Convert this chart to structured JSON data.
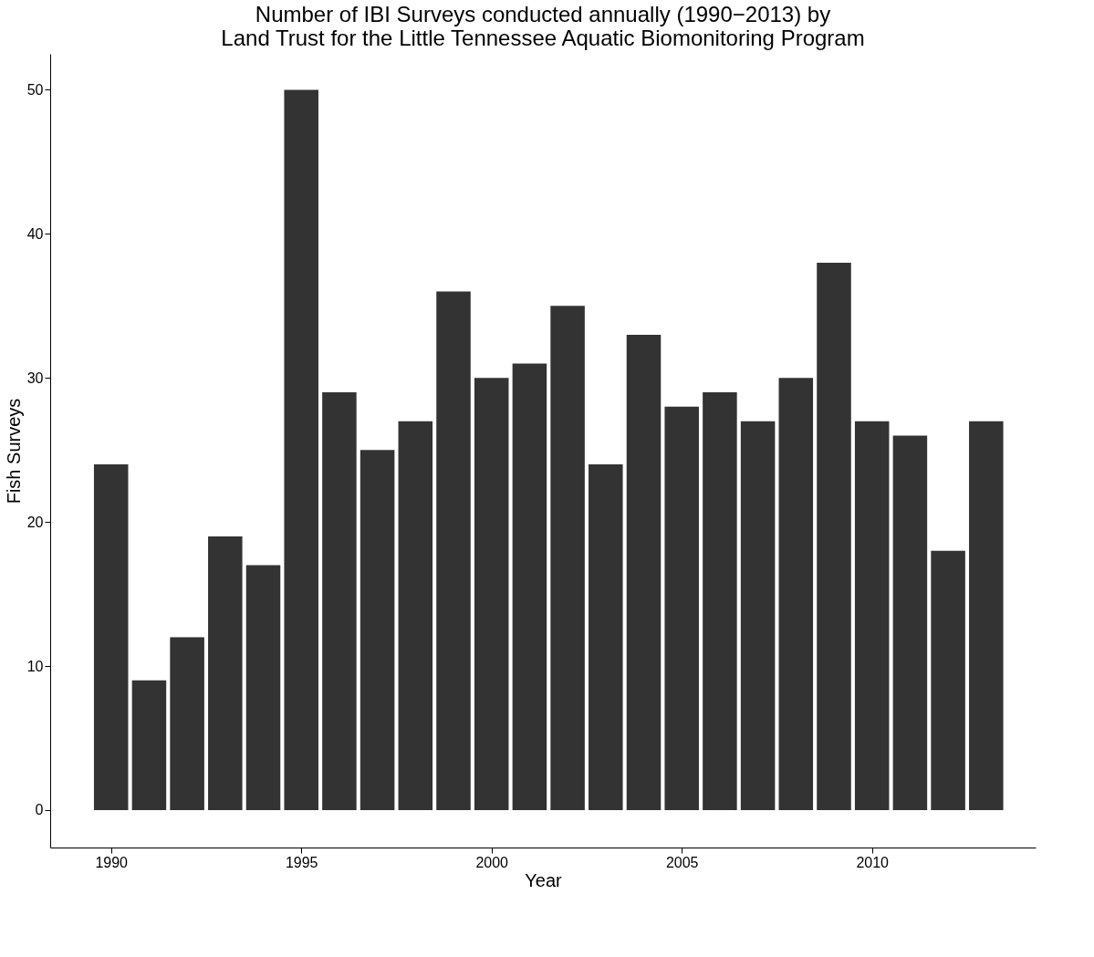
{
  "chart_data": {
    "type": "bar",
    "title": [
      "Number of IBI Surveys conducted annually (1990−2013) by",
      "Land Trust for the Little Tennessee Aquatic Biomonitoring Program"
    ],
    "xlabel": "Year",
    "ylabel": "Fish Surveys",
    "x": [
      1990,
      1991,
      1992,
      1993,
      1994,
      1995,
      1996,
      1997,
      1998,
      1999,
      2000,
      2001,
      2002,
      2003,
      2004,
      2005,
      2006,
      2007,
      2008,
      2009,
      2010,
      2011,
      2012,
      2013
    ],
    "values": [
      24,
      9,
      12,
      19,
      17,
      50,
      29,
      25,
      27,
      36,
      30,
      31,
      35,
      24,
      33,
      28,
      29,
      27,
      30,
      38,
      27,
      26,
      18,
      27
    ],
    "color": "#333333",
    "xlim": [
      1988.4,
      2014.3
    ],
    "xticks": [
      1990,
      1995,
      2000,
      2005,
      2010
    ],
    "ylim": [
      -2.6,
      52.5
    ],
    "yticks": [
      0,
      10,
      20,
      30,
      40,
      50
    ],
    "grid": false
  }
}
